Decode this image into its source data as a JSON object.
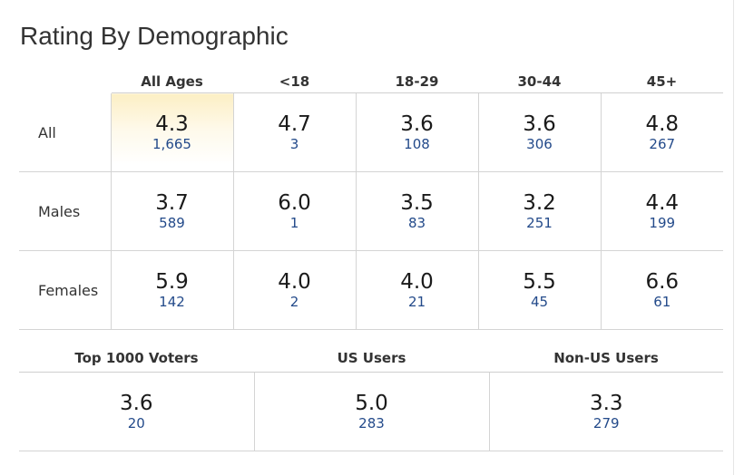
{
  "title": "Rating By Demographic",
  "age_columns": [
    "All Ages",
    "<18",
    "18-29",
    "30-44",
    "45+"
  ],
  "rows": [
    {
      "label": "All",
      "cells": [
        {
          "rating": "4.3",
          "votes": "1,665"
        },
        {
          "rating": "4.7",
          "votes": "3"
        },
        {
          "rating": "3.6",
          "votes": "108"
        },
        {
          "rating": "3.6",
          "votes": "306"
        },
        {
          "rating": "4.8",
          "votes": "267"
        }
      ]
    },
    {
      "label": "Males",
      "cells": [
        {
          "rating": "3.7",
          "votes": "589"
        },
        {
          "rating": "6.0",
          "votes": "1"
        },
        {
          "rating": "3.5",
          "votes": "83"
        },
        {
          "rating": "3.2",
          "votes": "251"
        },
        {
          "rating": "4.4",
          "votes": "199"
        }
      ]
    },
    {
      "label": "Females",
      "cells": [
        {
          "rating": "5.9",
          "votes": "142"
        },
        {
          "rating": "4.0",
          "votes": "2"
        },
        {
          "rating": "4.0",
          "votes": "21"
        },
        {
          "rating": "5.5",
          "votes": "45"
        },
        {
          "rating": "6.6",
          "votes": "61"
        }
      ]
    }
  ],
  "groups": [
    {
      "label": "Top 1000 Voters",
      "rating": "3.6",
      "votes": "20"
    },
    {
      "label": "US Users",
      "rating": "5.0",
      "votes": "283"
    },
    {
      "label": "Non-US Users",
      "rating": "3.3",
      "votes": "279"
    }
  ],
  "colors": {
    "highlight_top": "#fcefc4",
    "vote_count": "#234a8a",
    "grid": "#d4d4d4"
  }
}
